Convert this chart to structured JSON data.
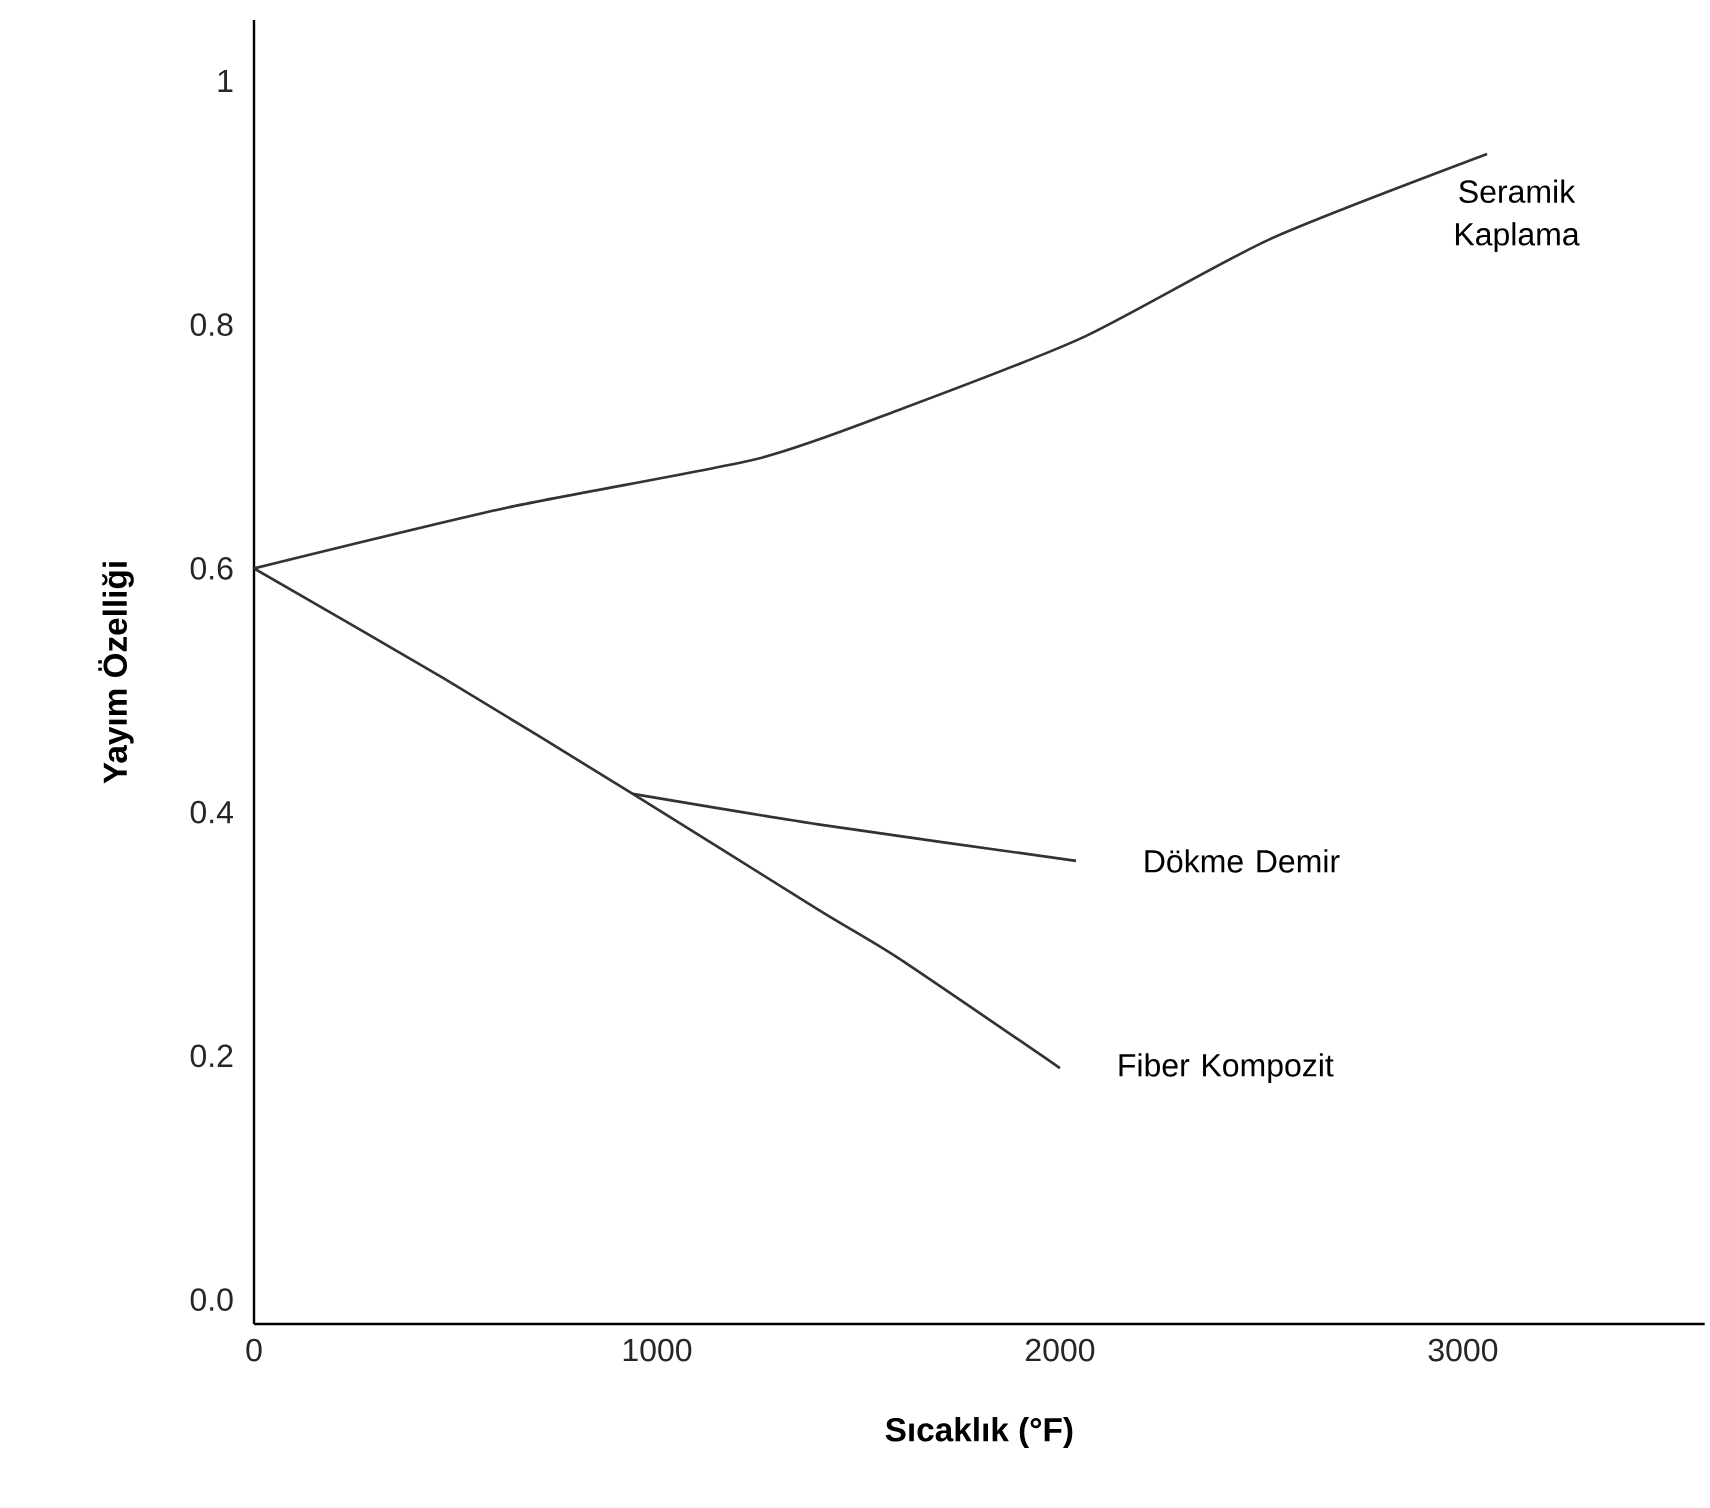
{
  "chart_data": {
    "type": "line",
    "xlabel": "Sıcaklık (°F)",
    "ylabel": "Yayım Özelliği",
    "series": [
      {
        "name": "Seramik Kaplama",
        "color": "#333333",
        "x": [
          0,
          630,
          1250,
          1600,
          2060,
          2520,
          3060
        ],
        "values": [
          0.6,
          0.65,
          0.69,
          0.73,
          0.79,
          0.87,
          0.94
        ]
      },
      {
        "name": "Dökme Demir",
        "color": "#333333",
        "x": [
          940,
          1400,
          2040
        ],
        "values": [
          0.415,
          0.39,
          0.36
        ]
      },
      {
        "name": "Fiber Kompozit",
        "color": "#333333",
        "x": [
          0,
          470,
          940,
          1400,
          1600,
          2000
        ],
        "values": [
          0.6,
          0.51,
          0.415,
          0.32,
          0.28,
          0.19
        ]
      }
    ],
    "xlim": [
      0,
      3600
    ],
    "ylim": [
      -0.02,
      1.05
    ],
    "xticks": [
      0,
      1000,
      2000,
      3000
    ],
    "yticks": [
      {
        "value": 0,
        "label": "0.0"
      },
      0.2,
      0.4,
      0.6,
      0.8,
      1
    ],
    "legend": false,
    "grid": false,
    "marker": "none",
    "line_style": "solid"
  }
}
